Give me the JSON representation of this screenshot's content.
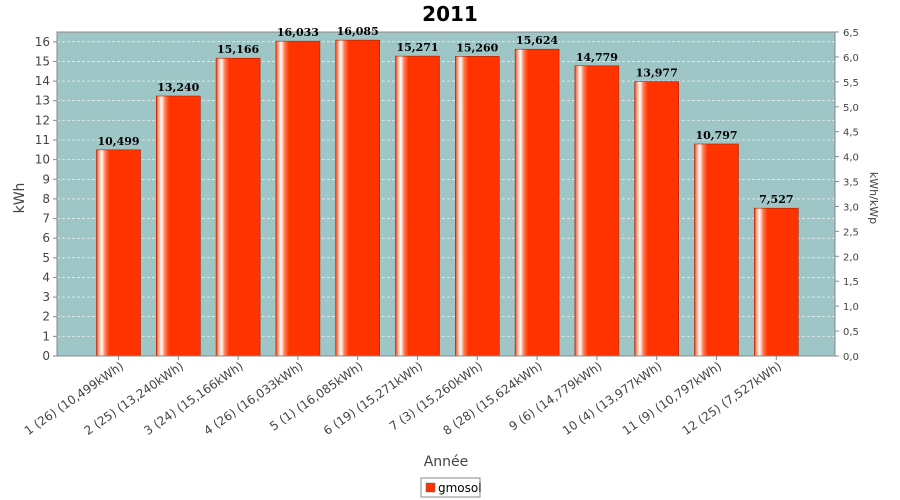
{
  "chart_data": {
    "type": "bar",
    "title": "2011",
    "xlabel": "Année",
    "ylabel": "kWh",
    "y2label": "kWh/kWp",
    "ylim": [
      0,
      16.5
    ],
    "y2lim": [
      0,
      6.5
    ],
    "yticks": [
      "0",
      "1",
      "2",
      "3",
      "4",
      "5",
      "6",
      "7",
      "8",
      "9",
      "10",
      "11",
      "12",
      "13",
      "14",
      "15",
      "16"
    ],
    "y2ticks": [
      "0,0",
      "0,5",
      "1,0",
      "1,5",
      "2,0",
      "2,5",
      "3,0",
      "3,5",
      "4,0",
      "4,5",
      "5,0",
      "5,5",
      "6,0",
      "6,5"
    ],
    "grid": true,
    "legend_position": "bottom",
    "plot_background": "#9ec6c6",
    "bar_color": "#ff3300",
    "categories": [
      "1 (26)  (10,499kWh)",
      "2 (25)  (13,240kWh)",
      "3 (24)  (15,166kWh)",
      "4 (26)  (16,033kWh)",
      "5 (1)  (16,085kWh)",
      "6 (19)  (15,271kWh)",
      "7 (3)  (15,260kWh)",
      "8 (28)  (15,624kWh)",
      "9 (6)  (14,779kWh)",
      "10 (4)  (13,977kWh)",
      "11 (9)  (10,797kWh)",
      "12 (25)  (7,527kWh)"
    ],
    "series": [
      {
        "name": "gmosol",
        "values": [
          10.499,
          13.24,
          15.166,
          16.033,
          16.085,
          15.271,
          15.26,
          15.624,
          14.779,
          13.977,
          10.797,
          7.527
        ],
        "labels": [
          "10,499",
          "13,240",
          "15,166",
          "16,033",
          "16,085",
          "15,271",
          "15,260",
          "15,624",
          "14,779",
          "13,977",
          "10,797",
          "7,527"
        ]
      }
    ]
  }
}
